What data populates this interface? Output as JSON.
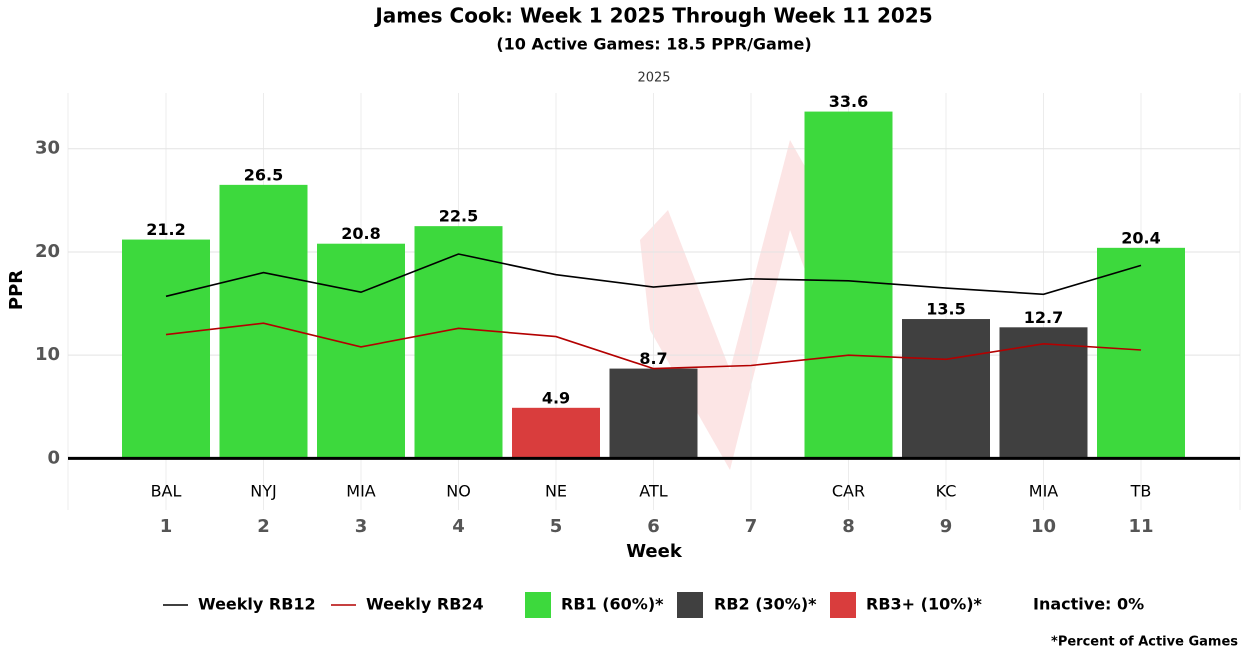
{
  "chart_data": {
    "type": "bar",
    "title": "James Cook: Week 1 2025 Through Week 11 2025",
    "subtitle": "(10 Active Games: 18.5 PPR/Game)",
    "facet": "2025",
    "y_label": "PPR",
    "x_label": "Week",
    "categories": [
      "1",
      "2",
      "3",
      "4",
      "5",
      "6",
      "7",
      "8",
      "9",
      "10",
      "11"
    ],
    "opponents": [
      "BAL",
      "NYJ",
      "MIA",
      "NO",
      "NE",
      "ATL",
      null,
      "CAR",
      "KC",
      "MIA",
      "TB"
    ],
    "values": [
      21.2,
      26.5,
      20.8,
      22.5,
      4.9,
      8.7,
      null,
      33.6,
      13.5,
      12.7,
      20.4
    ],
    "colors": [
      "#3dd93d",
      "#3dd93d",
      "#3dd93d",
      "#3dd93d",
      "#d93d3d",
      "#404040",
      null,
      "#3dd93d",
      "#404040",
      "#404040",
      "#3dd93d"
    ],
    "series": [
      {
        "name": "Weekly RB12",
        "color": "#000000",
        "values": [
          15.7,
          18.0,
          16.1,
          19.8,
          17.8,
          16.6,
          17.4,
          17.2,
          16.5,
          15.9,
          18.7
        ]
      },
      {
        "name": "Weekly RB24",
        "color": "#b30000",
        "values": [
          12.0,
          13.1,
          10.8,
          12.6,
          11.8,
          8.7,
          9.0,
          10.0,
          9.6,
          11.1,
          10.5
        ]
      }
    ],
    "legend_items": [
      {
        "name": "RB1 (60%)*",
        "color": "#3dd93d"
      },
      {
        "name": "RB2 (30%)*",
        "color": "#404040"
      },
      {
        "name": "RB3+ (10%)*",
        "color": "#d93d3d"
      }
    ],
    "inactive_label": "Inactive: 0%",
    "footnote": "*Percent of Active Games",
    "ylim": [
      -5,
      35.4
    ],
    "yticks": [
      0,
      10,
      20,
      30
    ],
    "grid": true
  }
}
